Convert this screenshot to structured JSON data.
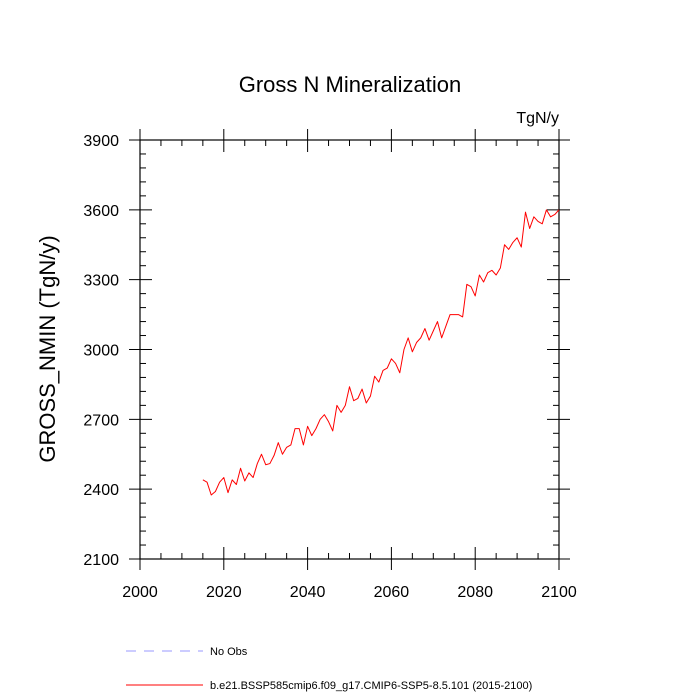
{
  "chart_data": {
    "type": "line",
    "title": "Gross N Mineralization",
    "units_label": "TgN/y",
    "xlabel": "",
    "ylabel": "GROSS_NMIN  (TgN/y)",
    "xlim": [
      2000,
      2100
    ],
    "ylim": [
      2100,
      3900
    ],
    "x_ticks": [
      2000,
      2020,
      2040,
      2060,
      2080,
      2100
    ],
    "x_tick_labels": [
      "2000",
      "2020",
      "2040",
      "2060",
      "2080",
      "2100"
    ],
    "y_ticks": [
      2100,
      2400,
      2700,
      3000,
      3300,
      3600,
      3900
    ],
    "y_tick_labels": [
      "2100",
      "2400",
      "2700",
      "3000",
      "3300",
      "3600",
      "3900"
    ],
    "grid": false,
    "legend_position": "bottom-left",
    "series": [
      {
        "name": "b.e21.BSSP585cmip6.f09_g17.CMIP6-SSP5-8.5.101 (2015-2100)",
        "color": "#ff0000",
        "style": "solid",
        "x": [
          2015,
          2016,
          2017,
          2018,
          2019,
          2020,
          2021,
          2022,
          2023,
          2024,
          2025,
          2026,
          2027,
          2028,
          2029,
          2030,
          2031,
          2032,
          2033,
          2034,
          2035,
          2036,
          2037,
          2038,
          2039,
          2040,
          2041,
          2042,
          2043,
          2044,
          2045,
          2046,
          2047,
          2048,
          2049,
          2050,
          2051,
          2052,
          2053,
          2054,
          2055,
          2056,
          2057,
          2058,
          2059,
          2060,
          2061,
          2062,
          2063,
          2064,
          2065,
          2066,
          2067,
          2068,
          2069,
          2070,
          2071,
          2072,
          2073,
          2074,
          2075,
          2076,
          2077,
          2078,
          2079,
          2080,
          2081,
          2082,
          2083,
          2084,
          2085,
          2086,
          2087,
          2088,
          2089,
          2090,
          2091,
          2092,
          2093,
          2094,
          2095,
          2096,
          2097,
          2098,
          2099,
          2100
        ],
        "values": [
          2440,
          2430,
          2375,
          2390,
          2430,
          2450,
          2385,
          2440,
          2420,
          2490,
          2435,
          2470,
          2450,
          2510,
          2550,
          2505,
          2510,
          2545,
          2600,
          2550,
          2580,
          2590,
          2660,
          2660,
          2590,
          2670,
          2630,
          2660,
          2700,
          2720,
          2690,
          2650,
          2760,
          2730,
          2760,
          2840,
          2780,
          2790,
          2830,
          2770,
          2800,
          2885,
          2860,
          2910,
          2920,
          2960,
          2940,
          2900,
          3000,
          3050,
          2990,
          3030,
          3050,
          3090,
          3040,
          3080,
          3120,
          3050,
          3100,
          3150,
          3150,
          3150,
          3140,
          3280,
          3270,
          3230,
          3320,
          3290,
          3330,
          3340,
          3320,
          3350,
          3450,
          3430,
          3460,
          3480,
          3440,
          3590,
          3520,
          3570,
          3550,
          3540,
          3600,
          3570,
          3580,
          3600
        ]
      },
      {
        "name": "No Obs",
        "color": "#9999ff",
        "style": "dashed",
        "x": [],
        "values": []
      }
    ]
  }
}
